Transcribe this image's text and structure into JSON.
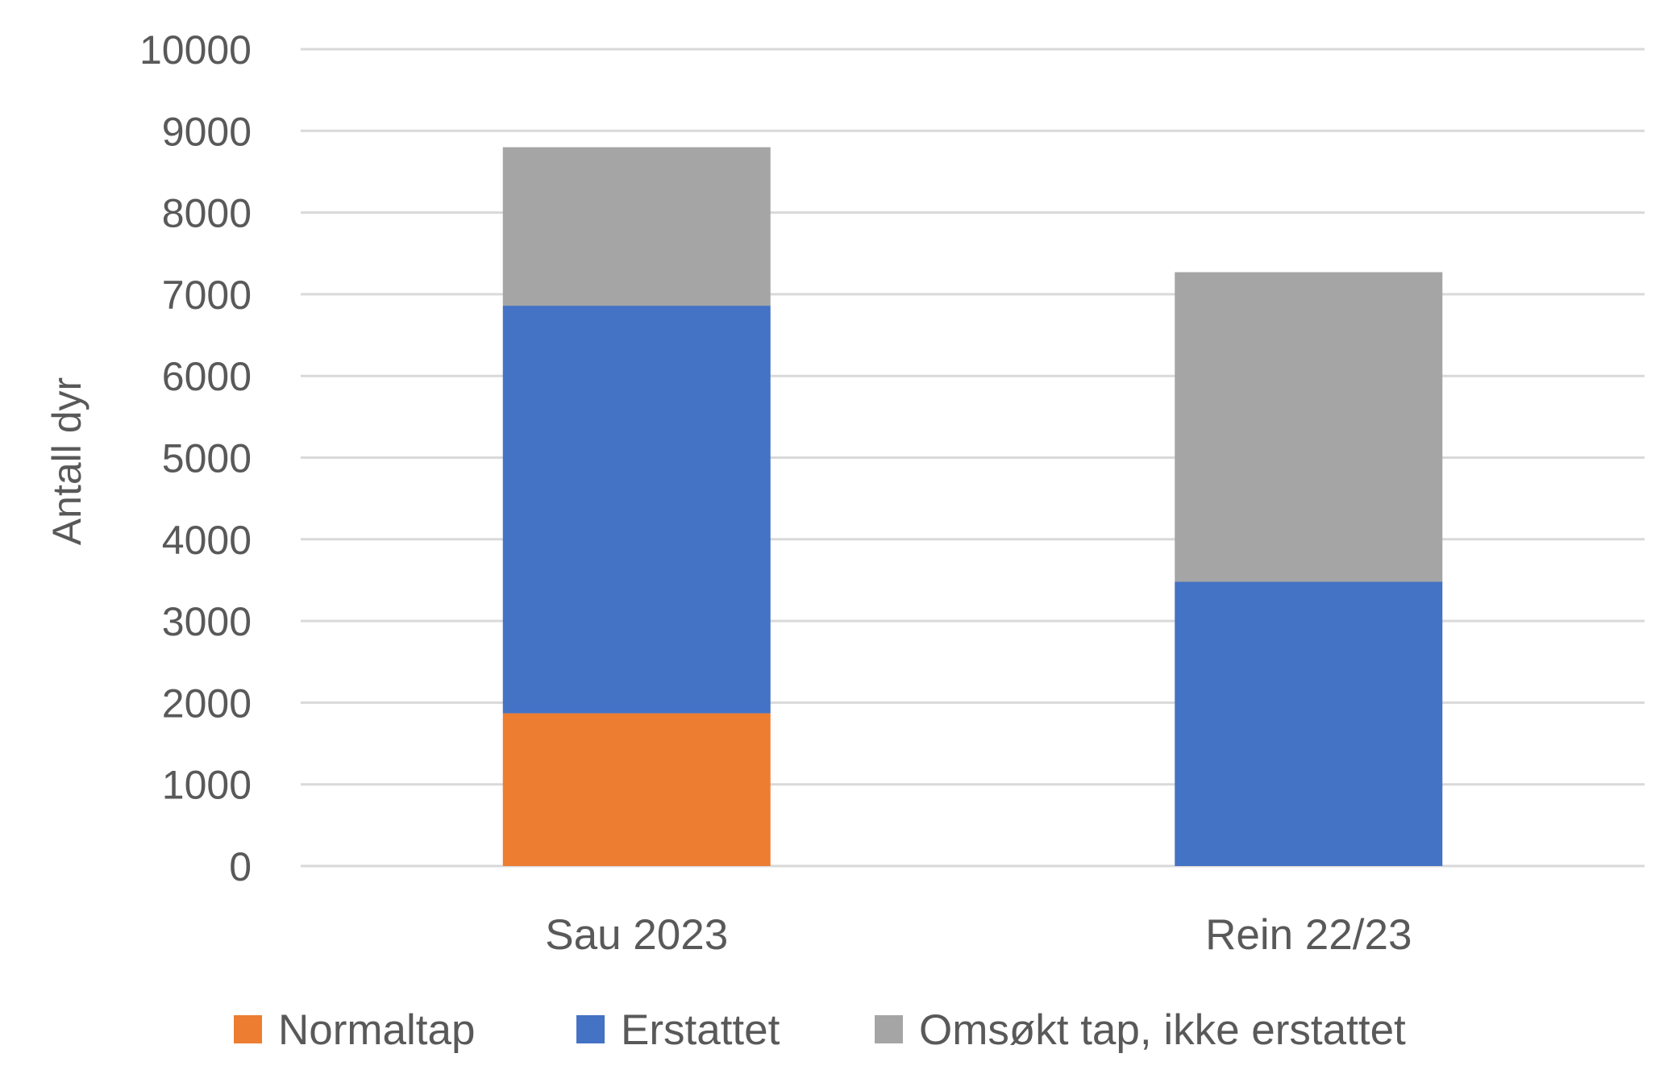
{
  "chart_data": {
    "type": "bar",
    "stacked": true,
    "categories": [
      "Sau 2023",
      "Rein 22/23"
    ],
    "series": [
      {
        "name": "Normaltap",
        "color": "#ED7D31",
        "values": [
          1870,
          0
        ]
      },
      {
        "name": "Erstattet",
        "color": "#4472C4",
        "values": [
          4990,
          3480
        ]
      },
      {
        "name": "Omsøkt tap, ikke erstattet",
        "color": "#A5A5A5",
        "values": [
          1940,
          3790
        ]
      }
    ],
    "title": "",
    "xlabel": "",
    "ylabel": "Antall dyr",
    "ylim": [
      0,
      10000
    ],
    "yticks": [
      "0",
      "1000",
      "2000",
      "3000",
      "4000",
      "5000",
      "6000",
      "7000",
      "8000",
      "9000",
      "10000"
    ],
    "grid": true,
    "legend_position": "bottom"
  }
}
